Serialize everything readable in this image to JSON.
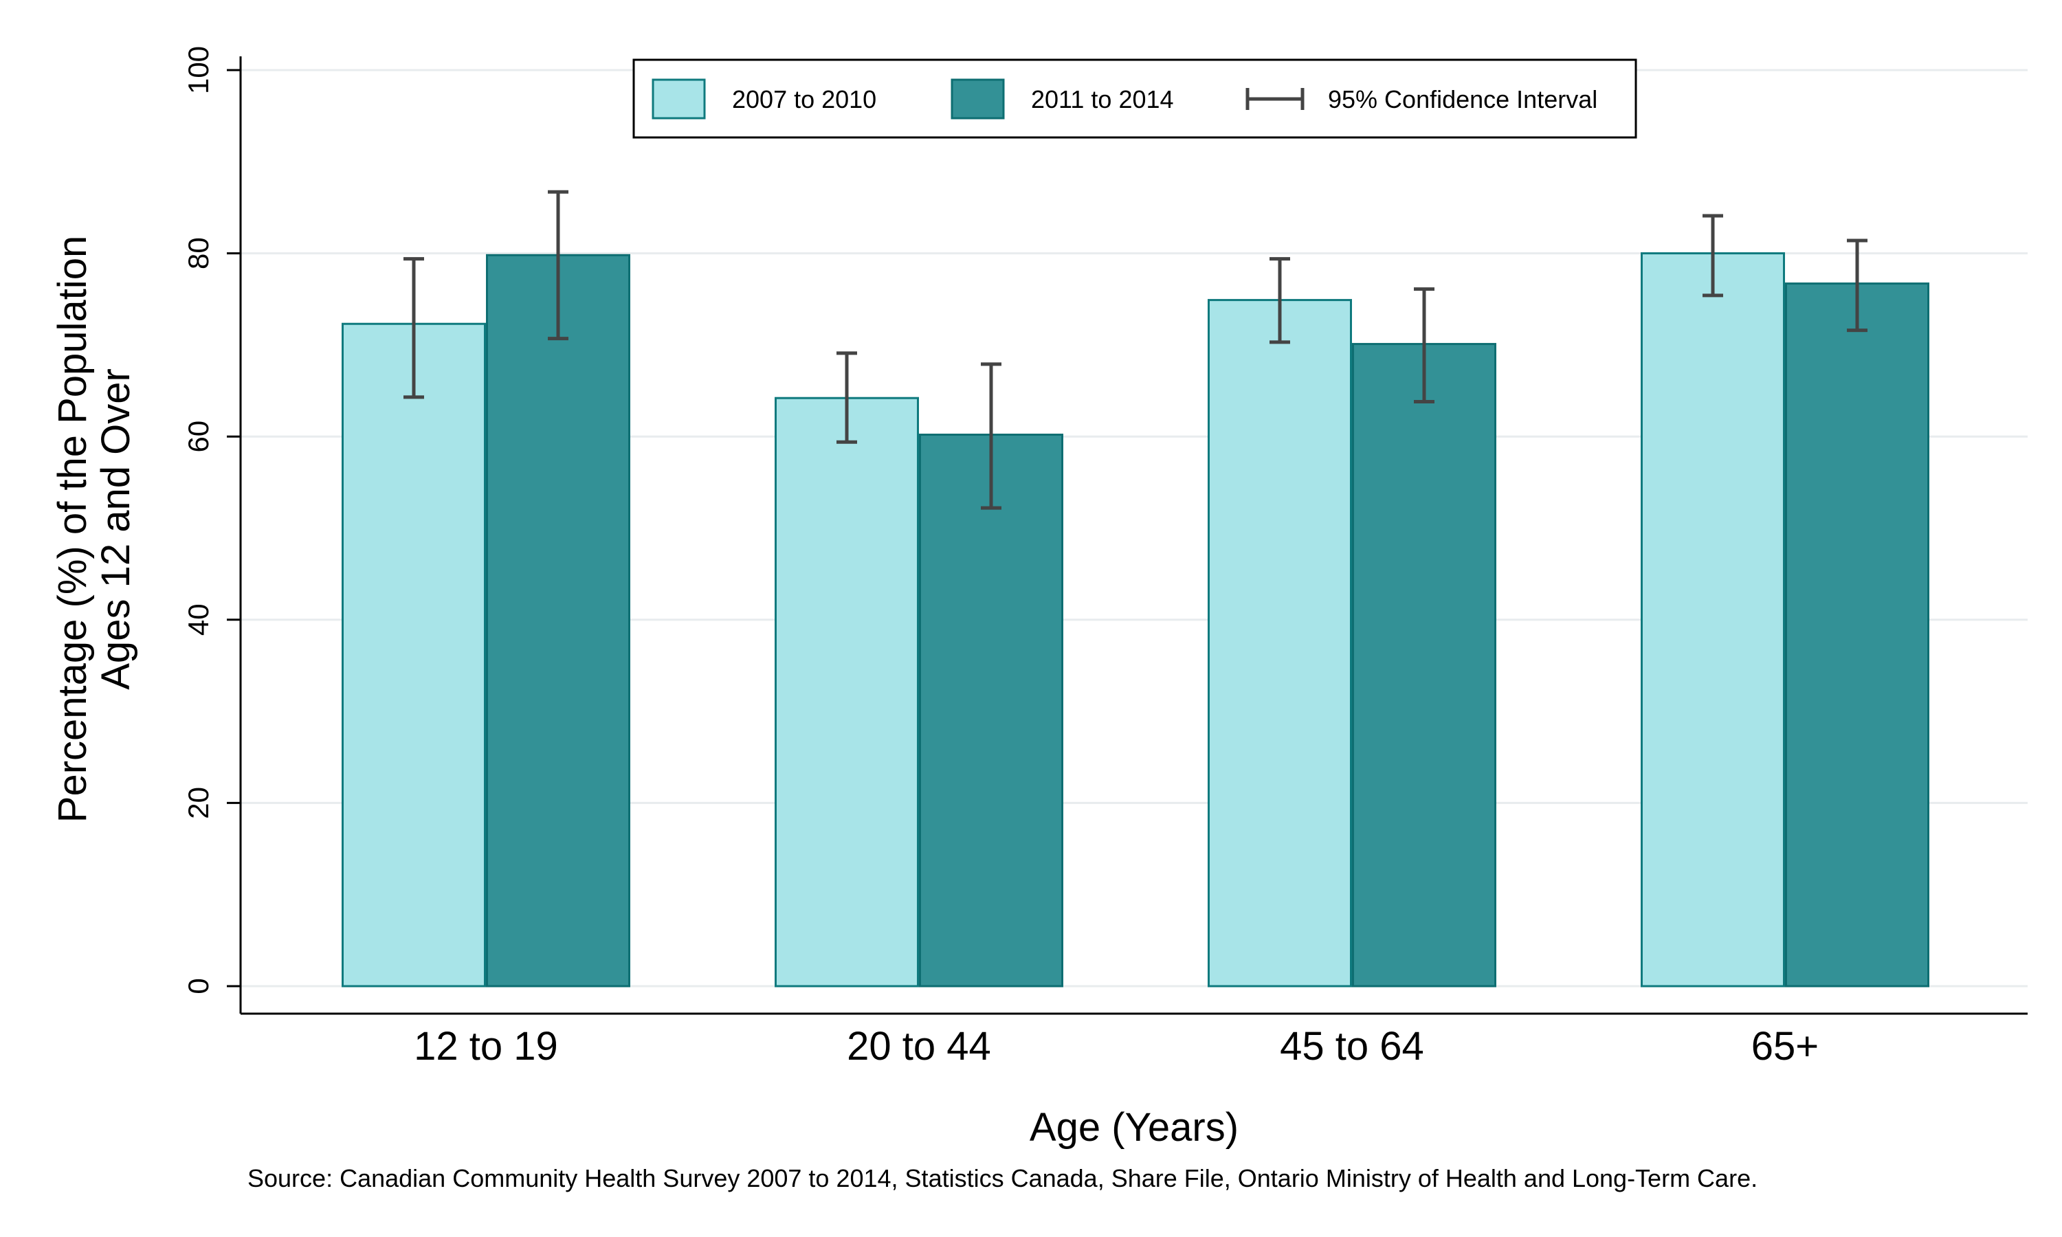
{
  "chart_data": {
    "type": "bar",
    "title": "",
    "xlabel": "Age (Years)",
    "ylabel_line1": "Percentage (%) of the Population",
    "ylabel_line2": "Ages 12 and Over",
    "categories": [
      "12 to 19",
      "20 to 44",
      "45 to 64",
      "65+"
    ],
    "ylim": [
      0,
      100
    ],
    "yticks": [
      0,
      20,
      40,
      60,
      80,
      100
    ],
    "grid": true,
    "legend_position": "top-center",
    "series": [
      {
        "name": "2007 to 2010",
        "color": "#a8e4e8",
        "edge": "#0f7a7e",
        "values": [
          72.3,
          64.2,
          74.9,
          80.0
        ],
        "ci_low": [
          64.3,
          59.4,
          70.3,
          75.4
        ],
        "ci_high": [
          79.4,
          69.1,
          79.4,
          84.1
        ]
      },
      {
        "name": "2011 to 2014",
        "color": "#339196",
        "edge": "#0e6e72",
        "values": [
          79.8,
          60.2,
          70.1,
          76.7
        ],
        "ci_low": [
          70.7,
          52.2,
          63.8,
          71.6
        ],
        "ci_high": [
          86.7,
          67.9,
          76.1,
          81.4
        ]
      }
    ],
    "ci_legend_label": "95% Confidence Interval",
    "source_note": "Source: Canadian Community Health Survey 2007 to 2014, Statistics Canada, Share File, Ontario Ministry of Health and Long-Term Care."
  }
}
